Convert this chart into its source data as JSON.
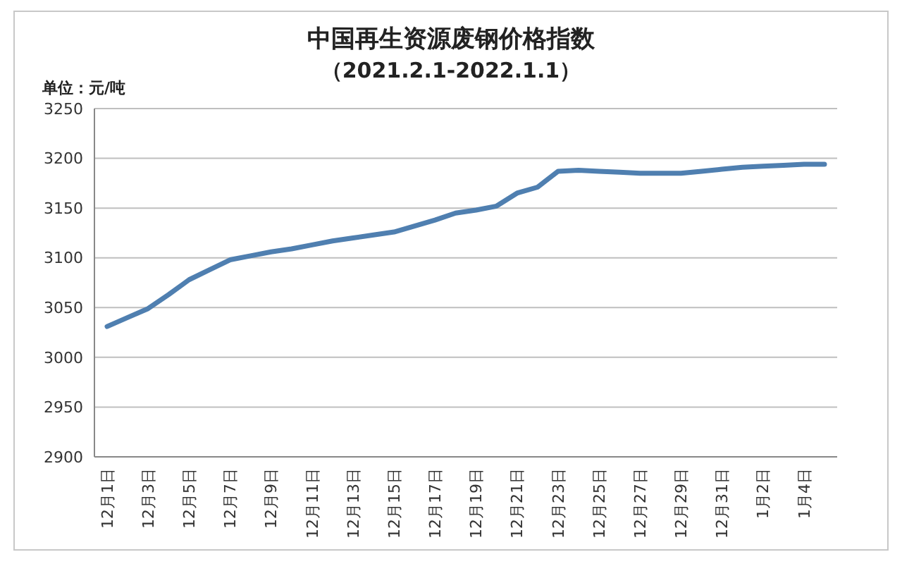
{
  "chart_data": {
    "type": "line",
    "title": "中国再生资源废钢价格指数",
    "subtitle": "（2021.2.1-2022.1.1）",
    "ylabel": "单位：元/吨",
    "categories": [
      "12月1日",
      null,
      "12月3日",
      null,
      "12月5日",
      null,
      "12月7日",
      null,
      "12月9日",
      null,
      "12月11日",
      null,
      "12月13日",
      null,
      "12月15日",
      null,
      "12月17日",
      null,
      "12月19日",
      null,
      "12月21日",
      null,
      "12月23日",
      null,
      "12月25日",
      null,
      "12月27日",
      null,
      "12月29日",
      null,
      "12月31日",
      null,
      "1月2日",
      null,
      "1月4日",
      null
    ],
    "series": [
      {
        "color": "#4f7fb0",
        "values": [
          3031,
          3040,
          3049,
          3063,
          3078,
          3088,
          3098,
          3102,
          3106,
          3109,
          3113,
          3117,
          3120,
          3123,
          3126,
          3132,
          3138,
          3145,
          3148,
          3152,
          3165,
          3171,
          3187,
          3188,
          3187,
          3186,
          3185,
          3185,
          3185,
          3187,
          3189,
          3191,
          3192,
          3193,
          3194,
          3194
        ]
      }
    ],
    "ylim": [
      2900,
      3250
    ],
    "yticks": [
      2900,
      2950,
      3000,
      3050,
      3100,
      3150,
      3200,
      3250
    ],
    "grid": "y",
    "marker": "none",
    "line_style": "solid"
  }
}
